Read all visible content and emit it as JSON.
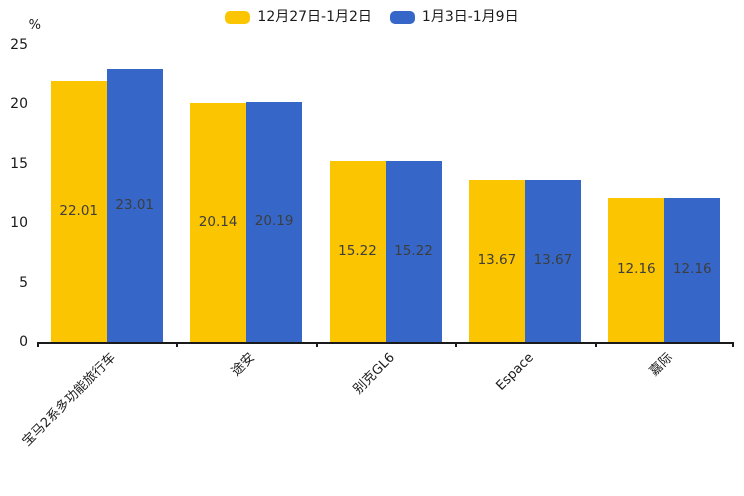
{
  "chart_data": {
    "type": "bar",
    "title": "",
    "xlabel": "",
    "ylabel": "%",
    "categories": [
      "宝马2系多功能旅行车",
      "途安",
      "别克GL6",
      "Espace",
      "嘉际"
    ],
    "series": [
      {
        "name": "12月27日-1月2日",
        "color": "#FCC502",
        "values": [
          22.01,
          20.14,
          15.22,
          13.67,
          12.16
        ]
      },
      {
        "name": "1月3日-1月9日",
        "color": "#3667C8",
        "values": [
          23.01,
          20.19,
          15.22,
          13.67,
          12.16
        ]
      }
    ],
    "ylim": [
      0,
      25
    ],
    "yticks": [
      0,
      5,
      10,
      15,
      20,
      25
    ],
    "grid": false,
    "legend_position": "top-center",
    "value_labels": "inside-center",
    "value_label_color": "#3d3d3d",
    "axis_color": "#1a1a1a"
  }
}
